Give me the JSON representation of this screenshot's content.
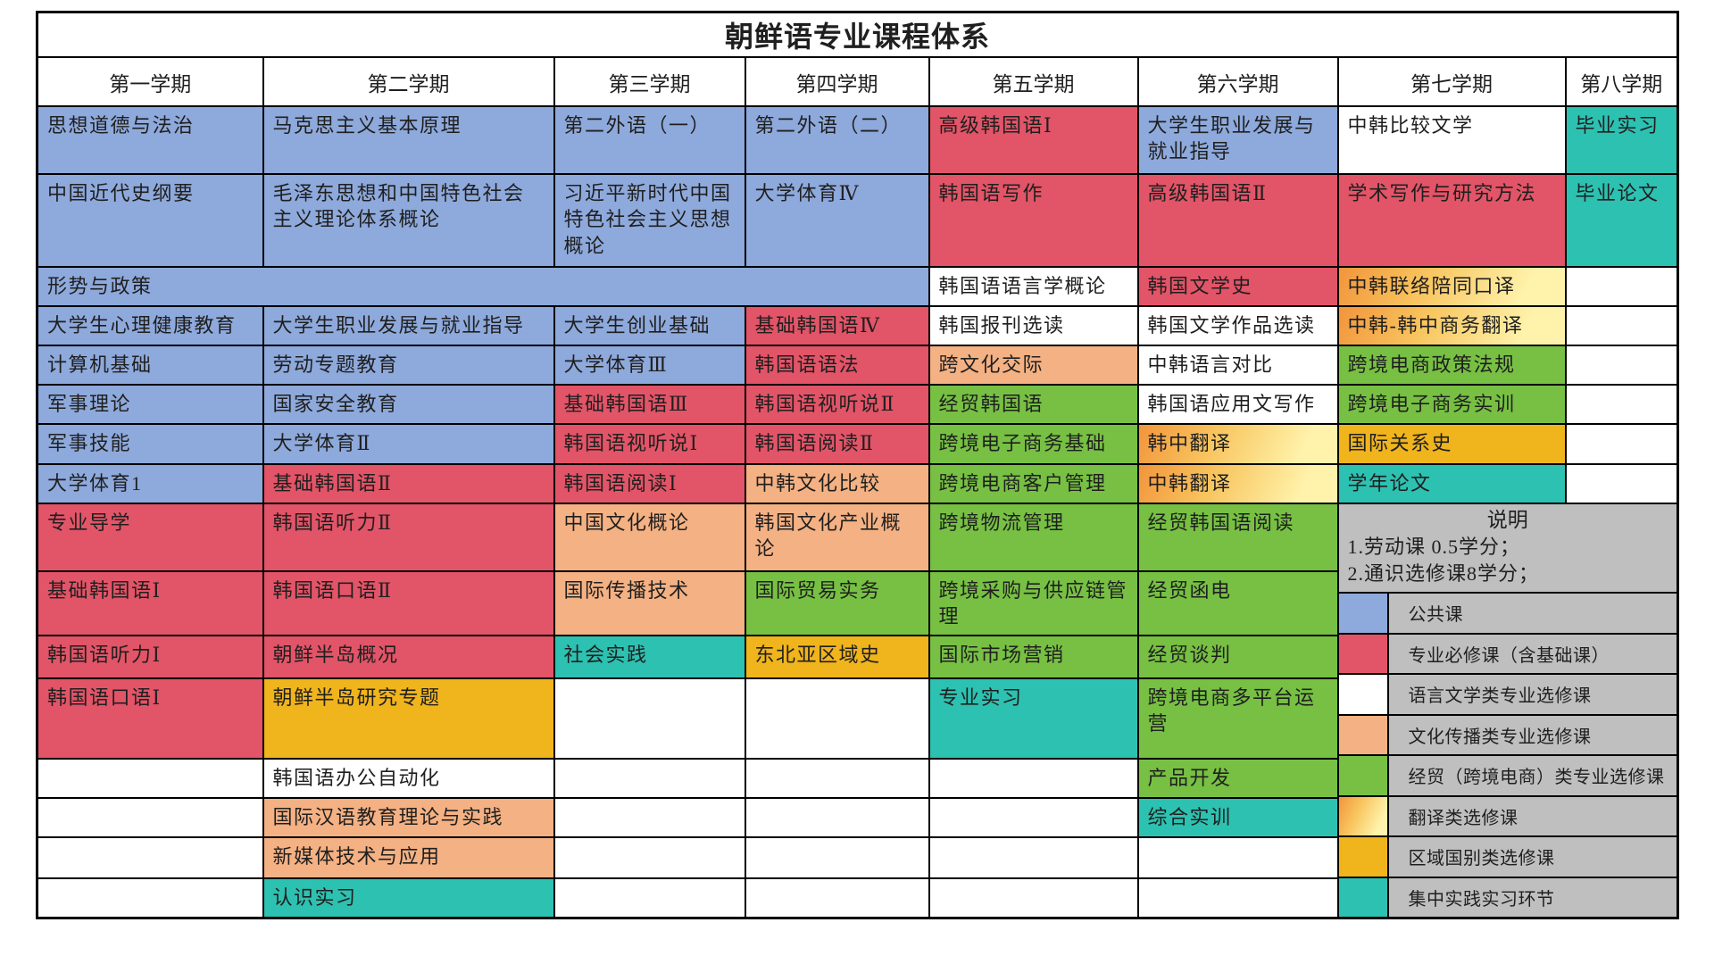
{
  "title": "朝鲜语专业课程体系",
  "semesters": [
    "第一学期",
    "第二学期",
    "第三学期",
    "第四学期",
    "第五学期",
    "第六学期",
    "第七学期",
    "第八学期"
  ],
  "categories": {
    "public": {
      "label": "公共课",
      "color": "#8EA9DB"
    },
    "required": {
      "label": "专业必修课（含基础课）",
      "color": "#E25467"
    },
    "linguistics": {
      "label": "语言文学类专业选修课",
      "color": "#FFFFFF"
    },
    "culture": {
      "label": "文化传播类专业选修课",
      "color": "#F4B183"
    },
    "trade": {
      "label": "经贸（跨境电商）类专业选修课",
      "color": "#77C043"
    },
    "translation": {
      "label": "翻译类选修课",
      "color_from": "#F2953C",
      "color_mid": "#F8C55F",
      "color_to": "#FFF3AC"
    },
    "regional": {
      "label": "区域国别类选修课",
      "color": "#F0B41C"
    },
    "practice": {
      "label": "集中实践实习环节",
      "color": "#2DC1B1"
    }
  },
  "legend": {
    "heading": "说明",
    "notes": [
      "1.劳动课 0.5学分；",
      "2.通识选修课8学分；"
    ],
    "bg": "#BFBFBF",
    "order": [
      "public",
      "required",
      "linguistics",
      "culture",
      "trade",
      "translation",
      "regional",
      "practice"
    ]
  },
  "rows": [
    [
      {
        "t": "思想道德与法治",
        "c": "public"
      },
      {
        "t": "马克思主义基本原理",
        "c": "public"
      },
      {
        "t": "第二外语（一）",
        "c": "public"
      },
      {
        "t": "第二外语（二）",
        "c": "public"
      },
      {
        "t": "高级韩国语Ⅰ",
        "c": "required"
      },
      {
        "t": "大学生职业发展与就业指导",
        "c": "public"
      },
      {
        "t": "中韩比较文学",
        "c": "linguistics"
      },
      {
        "t": "毕业实习",
        "c": "practice"
      }
    ],
    [
      {
        "t": "中国近代史纲要",
        "c": "public"
      },
      {
        "t": "毛泽东思想和中国特色社会主义理论体系概论",
        "c": "public"
      },
      {
        "t": "习近平新时代中国特色社会主义思想概论",
        "c": "public"
      },
      {
        "t": "大学体育Ⅳ",
        "c": "public"
      },
      {
        "t": "韩国语写作",
        "c": "required"
      },
      {
        "t": "高级韩国语Ⅱ",
        "c": "required"
      },
      {
        "t": "学术写作与研究方法",
        "c": "required"
      },
      {
        "t": "毕业论文",
        "c": "practice"
      }
    ],
    [
      {
        "t": "形势与政策",
        "c": "public",
        "cs": 4
      },
      {
        "t": "韩国语语言学概论",
        "c": "linguistics"
      },
      {
        "t": "韩国文学史",
        "c": "required"
      },
      {
        "t": "中韩联络陪同口译",
        "c": "translation"
      },
      {
        "t": "",
        "c": "none"
      }
    ],
    [
      {
        "t": "大学生心理健康教育",
        "c": "public"
      },
      {
        "t": "大学生职业发展与就业指导",
        "c": "public"
      },
      {
        "t": "大学生创业基础",
        "c": "public"
      },
      {
        "t": "基础韩国语Ⅳ",
        "c": "required"
      },
      {
        "t": "韩国报刊选读",
        "c": "linguistics"
      },
      {
        "t": "韩国文学作品选读",
        "c": "linguistics"
      },
      {
        "t": "中韩-韩中商务翻译",
        "c": "translation"
      },
      {
        "t": "",
        "c": "none"
      }
    ],
    [
      {
        "t": "计算机基础",
        "c": "public"
      },
      {
        "t": "劳动专题教育",
        "c": "public"
      },
      {
        "t": "大学体育Ⅲ",
        "c": "public"
      },
      {
        "t": "韩国语语法",
        "c": "required"
      },
      {
        "t": "跨文化交际",
        "c": "culture"
      },
      {
        "t": "中韩语言对比",
        "c": "linguistics"
      },
      {
        "t": "跨境电商政策法规",
        "c": "trade"
      },
      {
        "t": "",
        "c": "none"
      }
    ],
    [
      {
        "t": "军事理论",
        "c": "public"
      },
      {
        "t": "国家安全教育",
        "c": "public"
      },
      {
        "t": "基础韩国语Ⅲ",
        "c": "required"
      },
      {
        "t": "韩国语视听说Ⅱ",
        "c": "required"
      },
      {
        "t": "经贸韩国语",
        "c": "trade"
      },
      {
        "t": "韩国语应用文写作",
        "c": "linguistics"
      },
      {
        "t": "跨境电子商务实训",
        "c": "trade"
      },
      {
        "t": "",
        "c": "none"
      }
    ],
    [
      {
        "t": "军事技能",
        "c": "public"
      },
      {
        "t": "大学体育Ⅱ",
        "c": "public"
      },
      {
        "t": "韩国语视听说Ⅰ",
        "c": "required"
      },
      {
        "t": "韩国语阅读Ⅱ",
        "c": "required"
      },
      {
        "t": "跨境电子商务基础",
        "c": "trade"
      },
      {
        "t": "韩中翻译",
        "c": "translation"
      },
      {
        "t": "国际关系史",
        "c": "regional"
      },
      {
        "t": "",
        "c": "none"
      }
    ],
    [
      {
        "t": "大学体育1",
        "c": "public"
      },
      {
        "t": "基础韩国语Ⅱ",
        "c": "required"
      },
      {
        "t": "韩国语阅读Ⅰ",
        "c": "required"
      },
      {
        "t": "中韩文化比较",
        "c": "culture"
      },
      {
        "t": "跨境电商客户管理",
        "c": "trade"
      },
      {
        "t": "中韩翻译",
        "c": "translation"
      },
      {
        "t": "学年论文",
        "c": "practice"
      },
      {
        "t": "",
        "c": "none"
      }
    ],
    [
      {
        "t": "专业导学",
        "c": "required"
      },
      {
        "t": "韩国语听力Ⅱ",
        "c": "required"
      },
      {
        "t": "中国文化概论",
        "c": "culture"
      },
      {
        "t": "韩国文化产业概论",
        "c": "culture"
      },
      {
        "t": "跨境物流管理",
        "c": "trade"
      },
      {
        "t": "经贸韩国语阅读",
        "c": "trade"
      },
      {
        "legend": true,
        "cs": 2,
        "rs": 8
      }
    ],
    [
      {
        "t": "基础韩国语Ⅰ",
        "c": "required"
      },
      {
        "t": "韩国语口语Ⅱ",
        "c": "required"
      },
      {
        "t": "国际传播技术",
        "c": "culture"
      },
      {
        "t": "国际贸易实务",
        "c": "trade"
      },
      {
        "t": "跨境采购与供应链管理",
        "c": "trade"
      },
      {
        "t": "经贸函电",
        "c": "trade"
      }
    ],
    [
      {
        "t": "韩国语听力Ⅰ",
        "c": "required"
      },
      {
        "t": "朝鲜半岛概况",
        "c": "required"
      },
      {
        "t": "社会实践",
        "c": "practice"
      },
      {
        "t": "东北亚区域史",
        "c": "regional"
      },
      {
        "t": "国际市场营销",
        "c": "trade"
      },
      {
        "t": "经贸谈判",
        "c": "trade"
      }
    ],
    [
      {
        "t": "韩国语口语Ⅰ",
        "c": "required"
      },
      {
        "t": "朝鲜半岛研究专题",
        "c": "regional"
      },
      {
        "t": "",
        "c": "none"
      },
      {
        "t": "",
        "c": "none"
      },
      {
        "t": "专业实习",
        "c": "practice"
      },
      {
        "t": "跨境电商多平台运营",
        "c": "trade"
      }
    ],
    [
      {
        "t": "",
        "c": "none"
      },
      {
        "t": "韩国语办公自动化",
        "c": "linguistics"
      },
      {
        "t": "",
        "c": "none"
      },
      {
        "t": "",
        "c": "none"
      },
      {
        "t": "",
        "c": "none"
      },
      {
        "t": "产品开发",
        "c": "trade"
      }
    ],
    [
      {
        "t": "",
        "c": "none"
      },
      {
        "t": "国际汉语教育理论与实践",
        "c": "culture"
      },
      {
        "t": "",
        "c": "none"
      },
      {
        "t": "",
        "c": "none"
      },
      {
        "t": "",
        "c": "none"
      },
      {
        "t": "综合实训",
        "c": "practice"
      }
    ],
    [
      {
        "t": "",
        "c": "none"
      },
      {
        "t": "新媒体技术与应用",
        "c": "culture"
      },
      {
        "t": "",
        "c": "none"
      },
      {
        "t": "",
        "c": "none"
      },
      {
        "t": "",
        "c": "none"
      },
      {
        "t": "",
        "c": "none"
      }
    ],
    [
      {
        "t": "",
        "c": "none"
      },
      {
        "t": "认识实习",
        "c": "practice"
      },
      {
        "t": "",
        "c": "none"
      },
      {
        "t": "",
        "c": "none"
      },
      {
        "t": "",
        "c": "none"
      },
      {
        "t": "",
        "c": "none"
      }
    ]
  ]
}
